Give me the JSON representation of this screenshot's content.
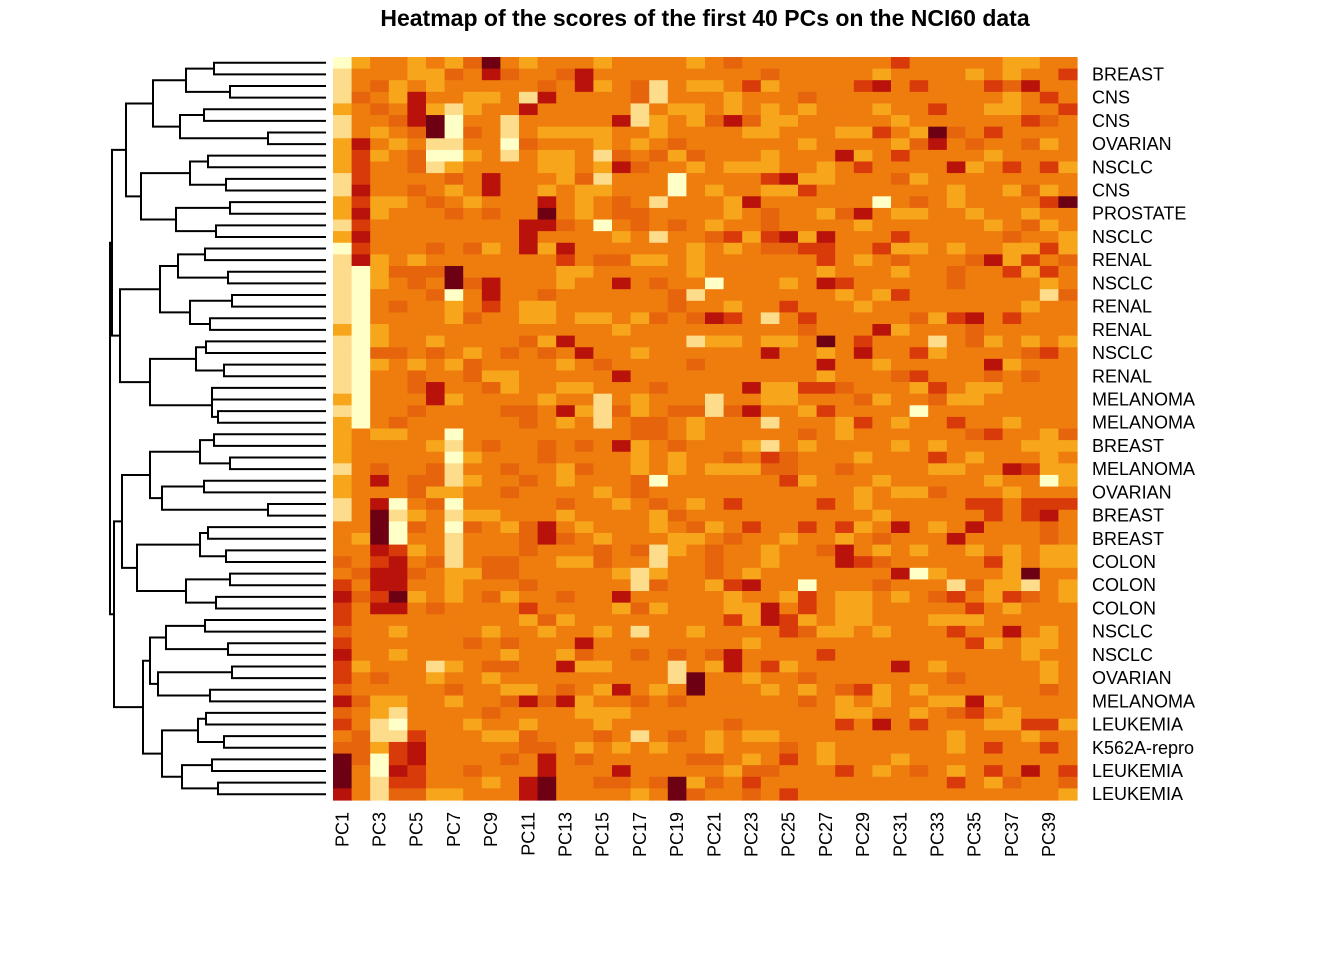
{
  "chart_data": {
    "type": "heatmap",
    "title": "Heatmap of the scores of the first 40 PCs on the NCI60 data",
    "row_labels": [
      "BREAST",
      "CNS",
      "CNS",
      "OVARIAN",
      "NSCLC",
      "CNS",
      "PROSTATE",
      "NSCLC",
      "RENAL",
      "NSCLC",
      "RENAL",
      "RENAL",
      "NSCLC",
      "RENAL",
      "MELANOMA",
      "MELANOMA",
      "BREAST",
      "MELANOMA",
      "OVARIAN",
      "BREAST",
      "BREAST",
      "COLON",
      "COLON",
      "COLON",
      "NSCLC",
      "NSCLC",
      "OVARIAN",
      "MELANOMA",
      "LEUKEMIA",
      "K562A-repro",
      "LEUKEMIA",
      "LEUKEMIA"
    ],
    "n_rows": 64,
    "n_cols": 40,
    "col_tick_labels": [
      "PC1",
      "PC3",
      "PC5",
      "PC7",
      "PC9",
      "PC11",
      "PC13",
      "PC15",
      "PC17",
      "PC19",
      "PC21",
      "PC23",
      "PC25",
      "PC27",
      "PC29",
      "PC31",
      "PC33",
      "PC35",
      "PC37",
      "PC39"
    ],
    "row_dendrogram": true,
    "col_dendrogram": false,
    "color_scale": [
      "#ffffc8",
      "#fddc8c",
      "#f7a51b",
      "#ee7d0e",
      "#e6650c",
      "#d93a0a",
      "#b8120a",
      "#6e0014"
    ],
    "default_level": 3,
    "cells_sparse": [
      [
        0,
        0,
        0
      ],
      [
        1,
        0,
        1
      ],
      [
        2,
        0,
        1
      ],
      [
        3,
        0,
        1
      ],
      [
        4,
        0,
        2
      ],
      [
        5,
        0,
        1
      ],
      [
        6,
        0,
        1
      ],
      [
        7,
        0,
        2
      ],
      [
        8,
        0,
        2
      ],
      [
        9,
        0,
        2
      ],
      [
        10,
        0,
        1
      ],
      [
        11,
        0,
        1
      ],
      [
        12,
        0,
        2
      ],
      [
        13,
        0,
        2
      ],
      [
        14,
        0,
        1
      ],
      [
        15,
        0,
        2
      ],
      [
        16,
        0,
        0
      ],
      [
        17,
        0,
        1
      ],
      [
        18,
        0,
        1
      ],
      [
        19,
        0,
        1
      ],
      [
        20,
        0,
        1
      ],
      [
        21,
        0,
        1
      ],
      [
        22,
        0,
        1
      ],
      [
        23,
        0,
        2
      ],
      [
        24,
        0,
        1
      ],
      [
        25,
        0,
        1
      ],
      [
        26,
        0,
        1
      ],
      [
        27,
        0,
        1
      ],
      [
        28,
        0,
        1
      ],
      [
        29,
        0,
        2
      ],
      [
        30,
        0,
        1
      ],
      [
        31,
        0,
        2
      ],
      [
        32,
        0,
        2
      ],
      [
        33,
        0,
        2
      ],
      [
        34,
        0,
        2
      ],
      [
        35,
        0,
        1
      ],
      [
        36,
        0,
        2
      ],
      [
        37,
        0,
        2
      ],
      [
        38,
        0,
        1
      ],
      [
        39,
        0,
        1
      ],
      [
        40,
        0,
        3
      ],
      [
        41,
        0,
        3
      ],
      [
        42,
        0,
        3
      ],
      [
        43,
        0,
        4
      ],
      [
        44,
        0,
        3
      ],
      [
        45,
        0,
        5
      ],
      [
        46,
        0,
        6
      ],
      [
        47,
        0,
        5
      ],
      [
        48,
        0,
        5
      ],
      [
        49,
        0,
        4
      ],
      [
        50,
        0,
        5
      ],
      [
        51,
        0,
        6
      ],
      [
        52,
        0,
        5
      ],
      [
        53,
        0,
        5
      ],
      [
        54,
        0,
        4
      ],
      [
        55,
        0,
        6
      ],
      [
        56,
        0,
        4
      ],
      [
        57,
        0,
        5
      ],
      [
        58,
        0,
        3
      ],
      [
        59,
        0,
        4
      ],
      [
        60,
        0,
        7
      ],
      [
        61,
        0,
        7
      ],
      [
        62,
        0,
        7
      ],
      [
        63,
        0,
        6
      ],
      [
        18,
        1,
        0
      ],
      [
        19,
        1,
        0
      ],
      [
        20,
        1,
        0
      ],
      [
        21,
        1,
        0
      ],
      [
        22,
        1,
        0
      ],
      [
        23,
        1,
        0
      ],
      [
        24,
        1,
        0
      ],
      [
        25,
        1,
        0
      ],
      [
        26,
        1,
        0
      ],
      [
        27,
        1,
        0
      ],
      [
        28,
        1,
        0
      ],
      [
        29,
        1,
        0
      ],
      [
        30,
        1,
        0
      ],
      [
        31,
        1,
        0
      ],
      [
        7,
        1,
        6
      ],
      [
        8,
        1,
        5
      ],
      [
        9,
        1,
        5
      ],
      [
        10,
        1,
        5
      ],
      [
        11,
        1,
        6
      ],
      [
        12,
        1,
        5
      ],
      [
        13,
        1,
        6
      ],
      [
        14,
        1,
        5
      ],
      [
        15,
        1,
        6
      ],
      [
        16,
        1,
        5
      ],
      [
        17,
        1,
        6
      ],
      [
        38,
        2,
        6
      ],
      [
        39,
        2,
        7
      ],
      [
        40,
        2,
        7
      ],
      [
        41,
        2,
        7
      ],
      [
        42,
        2,
        6
      ],
      [
        43,
        2,
        5
      ],
      [
        44,
        2,
        6
      ],
      [
        45,
        2,
        6
      ],
      [
        46,
        2,
        5
      ],
      [
        47,
        2,
        6
      ],
      [
        56,
        2,
        2
      ],
      [
        57,
        2,
        1
      ],
      [
        58,
        2,
        1
      ],
      [
        59,
        2,
        2
      ],
      [
        60,
        2,
        0
      ],
      [
        61,
        2,
        0
      ],
      [
        62,
        2,
        1
      ],
      [
        63,
        2,
        1
      ],
      [
        38,
        3,
        0
      ],
      [
        39,
        3,
        1
      ],
      [
        40,
        3,
        0
      ],
      [
        41,
        3,
        0
      ],
      [
        42,
        3,
        5
      ],
      [
        43,
        3,
        6
      ],
      [
        44,
        3,
        6
      ],
      [
        45,
        3,
        6
      ],
      [
        46,
        3,
        7
      ],
      [
        47,
        3,
        6
      ],
      [
        56,
        3,
        1
      ],
      [
        57,
        3,
        0
      ],
      [
        58,
        3,
        1
      ],
      [
        59,
        3,
        5
      ],
      [
        60,
        3,
        5
      ],
      [
        61,
        3,
        6
      ],
      [
        62,
        3,
        5
      ],
      [
        63,
        3,
        4
      ],
      [
        3,
        4,
        6
      ],
      [
        4,
        4,
        6
      ],
      [
        5,
        4,
        6
      ],
      [
        36,
        2,
        6
      ],
      [
        58,
        4,
        5
      ],
      [
        59,
        4,
        6
      ],
      [
        60,
        4,
        6
      ],
      [
        61,
        4,
        5
      ],
      [
        62,
        4,
        5
      ],
      [
        63,
        4,
        4
      ],
      [
        5,
        5,
        7
      ],
      [
        6,
        5,
        7
      ],
      [
        7,
        5,
        1
      ],
      [
        8,
        5,
        0
      ],
      [
        9,
        5,
        1
      ],
      [
        28,
        5,
        6
      ],
      [
        29,
        5,
        6
      ],
      [
        18,
        6,
        7
      ],
      [
        19,
        6,
        7
      ],
      [
        20,
        6,
        0
      ],
      [
        52,
        5,
        1
      ],
      [
        53,
        5,
        2
      ],
      [
        4,
        6,
        1
      ],
      [
        5,
        6,
        0
      ],
      [
        6,
        6,
        0
      ],
      [
        7,
        6,
        1
      ],
      [
        8,
        6,
        0
      ],
      [
        32,
        6,
        0
      ],
      [
        33,
        6,
        1
      ],
      [
        34,
        6,
        0
      ],
      [
        35,
        6,
        1
      ],
      [
        36,
        6,
        1
      ],
      [
        37,
        6,
        2
      ],
      [
        38,
        6,
        0
      ],
      [
        39,
        6,
        1
      ],
      [
        40,
        6,
        0
      ],
      [
        41,
        6,
        1
      ],
      [
        42,
        6,
        1
      ],
      [
        43,
        6,
        1
      ],
      [
        44,
        6,
        2
      ],
      [
        45,
        6,
        2
      ],
      [
        0,
        8,
        7
      ],
      [
        1,
        8,
        6
      ],
      [
        10,
        8,
        6
      ],
      [
        11,
        8,
        6
      ],
      [
        19,
        8,
        6
      ],
      [
        20,
        8,
        6
      ],
      [
        21,
        8,
        5
      ],
      [
        5,
        9,
        1
      ],
      [
        6,
        9,
        1
      ],
      [
        7,
        9,
        0
      ],
      [
        8,
        9,
        1
      ],
      [
        3,
        10,
        1
      ],
      [
        4,
        10,
        6
      ],
      [
        14,
        10,
        6
      ],
      [
        15,
        10,
        6
      ],
      [
        16,
        10,
        6
      ],
      [
        47,
        10,
        5
      ],
      [
        55,
        10,
        6
      ],
      [
        62,
        10,
        6
      ],
      [
        63,
        10,
        6
      ],
      [
        3,
        11,
        6
      ],
      [
        12,
        11,
        6
      ],
      [
        13,
        11,
        7
      ],
      [
        14,
        11,
        6
      ],
      [
        40,
        11,
        6
      ],
      [
        41,
        11,
        6
      ],
      [
        60,
        11,
        6
      ],
      [
        61,
        11,
        6
      ],
      [
        62,
        11,
        7
      ],
      [
        63,
        11,
        7
      ],
      [
        16,
        12,
        6
      ],
      [
        17,
        12,
        5
      ],
      [
        24,
        12,
        6
      ],
      [
        30,
        12,
        6
      ],
      [
        52,
        12,
        6
      ],
      [
        55,
        12,
        6
      ],
      [
        1,
        13,
        6
      ],
      [
        2,
        13,
        6
      ],
      [
        25,
        13,
        6
      ],
      [
        50,
        13,
        6
      ],
      [
        8,
        14,
        1
      ],
      [
        9,
        14,
        2
      ],
      [
        10,
        14,
        1
      ],
      [
        11,
        14,
        2
      ],
      [
        14,
        14,
        0
      ],
      [
        22,
        14,
        2
      ],
      [
        29,
        14,
        1
      ],
      [
        30,
        14,
        1
      ],
      [
        31,
        14,
        1
      ],
      [
        5,
        15,
        6
      ],
      [
        9,
        15,
        6
      ],
      [
        19,
        15,
        6
      ],
      [
        27,
        15,
        6
      ],
      [
        33,
        15,
        6
      ],
      [
        46,
        15,
        6
      ],
      [
        54,
        15,
        6
      ],
      [
        61,
        15,
        6
      ],
      [
        44,
        16,
        1
      ],
      [
        45,
        16,
        1
      ],
      [
        49,
        16,
        1
      ],
      [
        58,
        16,
        1
      ],
      [
        4,
        16,
        1
      ],
      [
        5,
        16,
        1
      ],
      [
        2,
        17,
        1
      ],
      [
        3,
        17,
        1
      ],
      [
        12,
        17,
        1
      ],
      [
        15,
        17,
        1
      ],
      [
        52,
        18,
        1
      ],
      [
        53,
        18,
        1
      ],
      [
        62,
        18,
        7
      ],
      [
        63,
        18,
        7
      ],
      [
        10,
        18,
        0
      ],
      [
        11,
        18,
        0
      ],
      [
        36,
        17,
        0
      ],
      [
        42,
        17,
        1
      ],
      [
        43,
        17,
        1
      ],
      [
        20,
        19,
        1
      ],
      [
        24,
        19,
        1
      ],
      [
        53,
        19,
        7
      ],
      [
        54,
        19,
        7
      ],
      [
        19,
        20,
        0
      ],
      [
        29,
        20,
        1
      ],
      [
        30,
        20,
        1
      ],
      [
        22,
        20,
        6
      ],
      [
        5,
        21,
        6
      ],
      [
        28,
        22,
        6
      ],
      [
        30,
        22,
        6
      ],
      [
        45,
        22,
        6
      ],
      [
        12,
        22,
        6
      ],
      [
        51,
        21,
        6
      ],
      [
        52,
        21,
        6
      ],
      [
        22,
        23,
        1
      ],
      [
        31,
        23,
        1
      ],
      [
        33,
        23,
        1
      ],
      [
        25,
        23,
        6
      ],
      [
        47,
        23,
        6
      ],
      [
        48,
        23,
        6
      ],
      [
        15,
        24,
        6
      ],
      [
        10,
        24,
        6
      ],
      [
        45,
        25,
        0
      ],
      [
        15,
        26,
        6
      ],
      [
        19,
        26,
        6
      ],
      [
        24,
        26,
        7
      ],
      [
        26,
        26,
        6
      ],
      [
        8,
        27,
        6
      ],
      [
        42,
        27,
        6
      ],
      [
        43,
        27,
        6
      ],
      [
        13,
        28,
        6
      ],
      [
        25,
        28,
        6
      ],
      [
        2,
        29,
        6
      ],
      [
        23,
        29,
        6
      ],
      [
        12,
        29,
        0
      ],
      [
        40,
        30,
        6
      ],
      [
        44,
        30,
        6
      ],
      [
        52,
        30,
        6
      ],
      [
        57,
        29,
        6
      ],
      [
        30,
        31,
        0
      ],
      [
        44,
        31,
        0
      ],
      [
        6,
        32,
        7
      ],
      [
        7,
        32,
        6
      ],
      [
        24,
        32,
        1
      ],
      [
        9,
        33,
        6
      ],
      [
        41,
        33,
        6
      ],
      [
        45,
        33,
        1
      ],
      [
        22,
        34,
        6
      ],
      [
        40,
        34,
        6
      ],
      [
        55,
        34,
        6
      ],
      [
        56,
        34,
        5
      ],
      [
        17,
        35,
        6
      ],
      [
        26,
        35,
        6
      ],
      [
        49,
        36,
        6
      ],
      [
        35,
        36,
        6
      ],
      [
        2,
        37,
        6
      ],
      [
        45,
        37,
        1
      ],
      [
        44,
        37,
        7
      ],
      [
        36,
        38,
        0
      ],
      [
        20,
        38,
        1
      ],
      [
        39,
        38,
        6
      ],
      [
        61,
        37,
        6
      ],
      [
        12,
        39,
        7
      ]
    ]
  }
}
